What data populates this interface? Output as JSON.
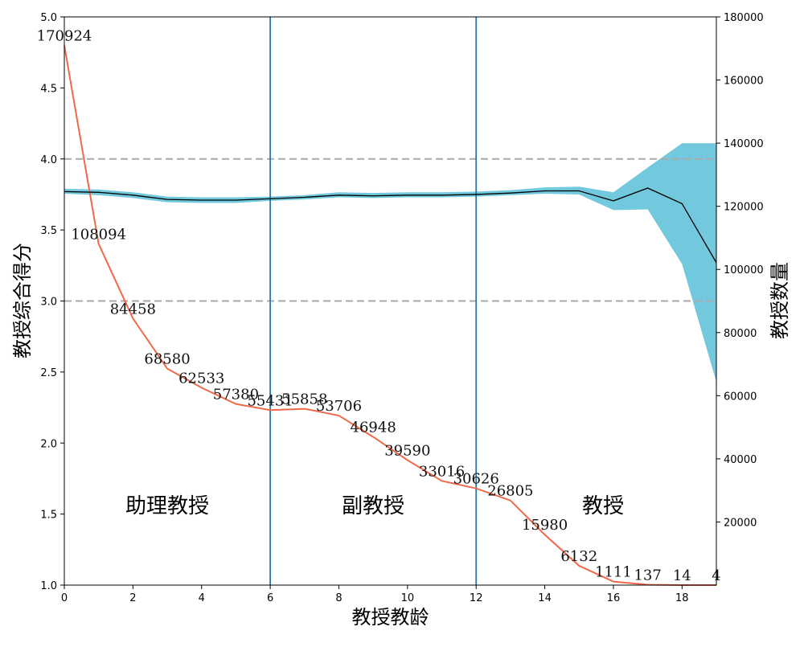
{
  "chart_data": {
    "type": "line",
    "xlabel": "教授教龄",
    "ylabel_left": "教授综合得分",
    "ylabel_right": "教授数量",
    "xlim": [
      0,
      19
    ],
    "ylim_left": [
      1.0,
      5.0
    ],
    "ylim_right": [
      0,
      180000
    ],
    "x_ticks": [
      0,
      2,
      4,
      6,
      8,
      10,
      12,
      14,
      16,
      18
    ],
    "y_ticks_left": [
      "1.0",
      "1.5",
      "2.0",
      "2.5",
      "3.0",
      "3.5",
      "4.0",
      "4.5",
      "5.0"
    ],
    "y_ticks_right": [
      20000,
      40000,
      60000,
      80000,
      100000,
      120000,
      140000,
      160000,
      180000
    ],
    "grid": false,
    "x": [
      0,
      1,
      2,
      3,
      4,
      5,
      6,
      7,
      8,
      9,
      10,
      11,
      12,
      13,
      14,
      15,
      16,
      17,
      18,
      19
    ],
    "score_mean": [
      3.77,
      3.765,
      3.745,
      3.715,
      3.71,
      3.71,
      3.72,
      3.73,
      3.745,
      3.74,
      3.745,
      3.745,
      3.75,
      3.76,
      3.775,
      3.775,
      3.705,
      3.795,
      3.685,
      3.27
    ],
    "score_lower": [
      3.755,
      3.745,
      3.725,
      3.695,
      3.69,
      3.69,
      3.705,
      3.715,
      3.73,
      3.725,
      3.73,
      3.73,
      3.735,
      3.745,
      3.755,
      3.75,
      3.64,
      3.645,
      3.26,
      2.43
    ],
    "score_upper": [
      3.79,
      3.785,
      3.765,
      3.735,
      3.73,
      3.73,
      3.735,
      3.745,
      3.765,
      3.76,
      3.765,
      3.765,
      3.77,
      3.78,
      3.8,
      3.805,
      3.765,
      3.94,
      4.11,
      4.11
    ],
    "counts": [
      170924,
      108094,
      84458,
      68580,
      62533,
      57380,
      55431,
      55858,
      53706,
      46948,
      39590,
      33016,
      30626,
      26805,
      15980,
      6132,
      1111,
      137,
      14,
      4
    ],
    "count_labels": [
      "170924",
      "108094",
      "84458",
      "68580",
      "62533",
      "57380",
      "55431",
      "55858",
      "53706",
      "46948",
      "39590",
      "33016",
      "30626",
      "26805",
      "15980",
      "6132",
      "1111",
      "137",
      "14",
      "4"
    ],
    "vlines_x": [
      6,
      12
    ],
    "hlines_y": [
      3.0,
      4.0
    ],
    "regions": [
      {
        "label": "助理教授",
        "x": 3
      },
      {
        "label": "副教授",
        "x": 9
      },
      {
        "label": "教授",
        "x": 15.7
      }
    ],
    "colors": {
      "band": "#72c9dd",
      "mean_line": "#000000",
      "count_line": "#f0694a",
      "vline": "#2a79a2",
      "hline": "#aaaaaa",
      "axis": "#000000"
    }
  }
}
